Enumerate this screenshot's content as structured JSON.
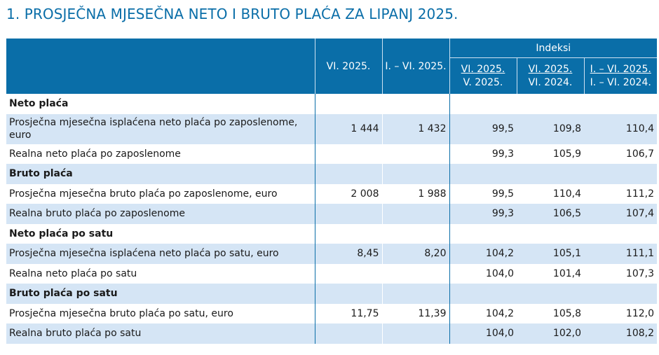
{
  "title": "1. PROSJEČNA MJESEČNA NETO I BRUTO PLAĆA ZA LIPANJ 2025.",
  "header": {
    "col1": "VI. 2025.",
    "col2": "I. – VI. 2025.",
    "indeksi": "Indeksi",
    "idx1": {
      "top": "VI. 2025.",
      "bottom": "V. 2025."
    },
    "idx2": {
      "top": "VI. 2025.",
      "bottom": "VI. 2024."
    },
    "idx3": {
      "top": "I. – VI. 2025.",
      "bottom": "I. – VI. 2024."
    }
  },
  "rows": [
    {
      "label": "Neto plaća",
      "values": [
        "",
        "",
        "",
        "",
        ""
      ]
    },
    {
      "label": "Prosječna mjesečna isplaćena neto plaća po zaposlenome, euro",
      "values": [
        "1 444",
        "1 432",
        "99,5",
        "109,8",
        "110,4"
      ]
    },
    {
      "label": "Realna neto plaća po zaposlenome",
      "values": [
        "",
        "",
        "99,3",
        "105,9",
        "106,7"
      ]
    },
    {
      "label": "Bruto plaća",
      "values": [
        "",
        "",
        "",
        "",
        ""
      ]
    },
    {
      "label": "Prosječna mjesečna bruto plaća po zaposlenome, euro",
      "values": [
        "2 008",
        "1 988",
        "99,5",
        "110,4",
        "111,2"
      ]
    },
    {
      "label": "Realna bruto plaća po zaposlenome",
      "values": [
        "",
        "",
        "99,3",
        "106,5",
        "107,4"
      ]
    },
    {
      "label": "Neto plaća po satu",
      "values": [
        "",
        "",
        "",
        "",
        ""
      ]
    },
    {
      "label": "Prosječna mjesečna isplaćena neto plaća po satu, euro",
      "values": [
        "8,45",
        "8,20",
        "104,2",
        "105,1",
        "111,1"
      ]
    },
    {
      "label": "Realna neto plaća po satu",
      "values": [
        "",
        "",
        "104,0",
        "101,4",
        "107,3"
      ]
    },
    {
      "label": "Bruto plaća po satu",
      "values": [
        "",
        "",
        "",
        "",
        ""
      ]
    },
    {
      "label": "Prosječna mjesečna bruto plaća po satu, euro",
      "values": [
        "11,75",
        "11,39",
        "104,2",
        "105,8",
        "112,0"
      ]
    },
    {
      "label": "Realna bruto plaća po satu",
      "values": [
        "",
        "",
        "104,0",
        "102,0",
        "108,2"
      ]
    }
  ]
}
